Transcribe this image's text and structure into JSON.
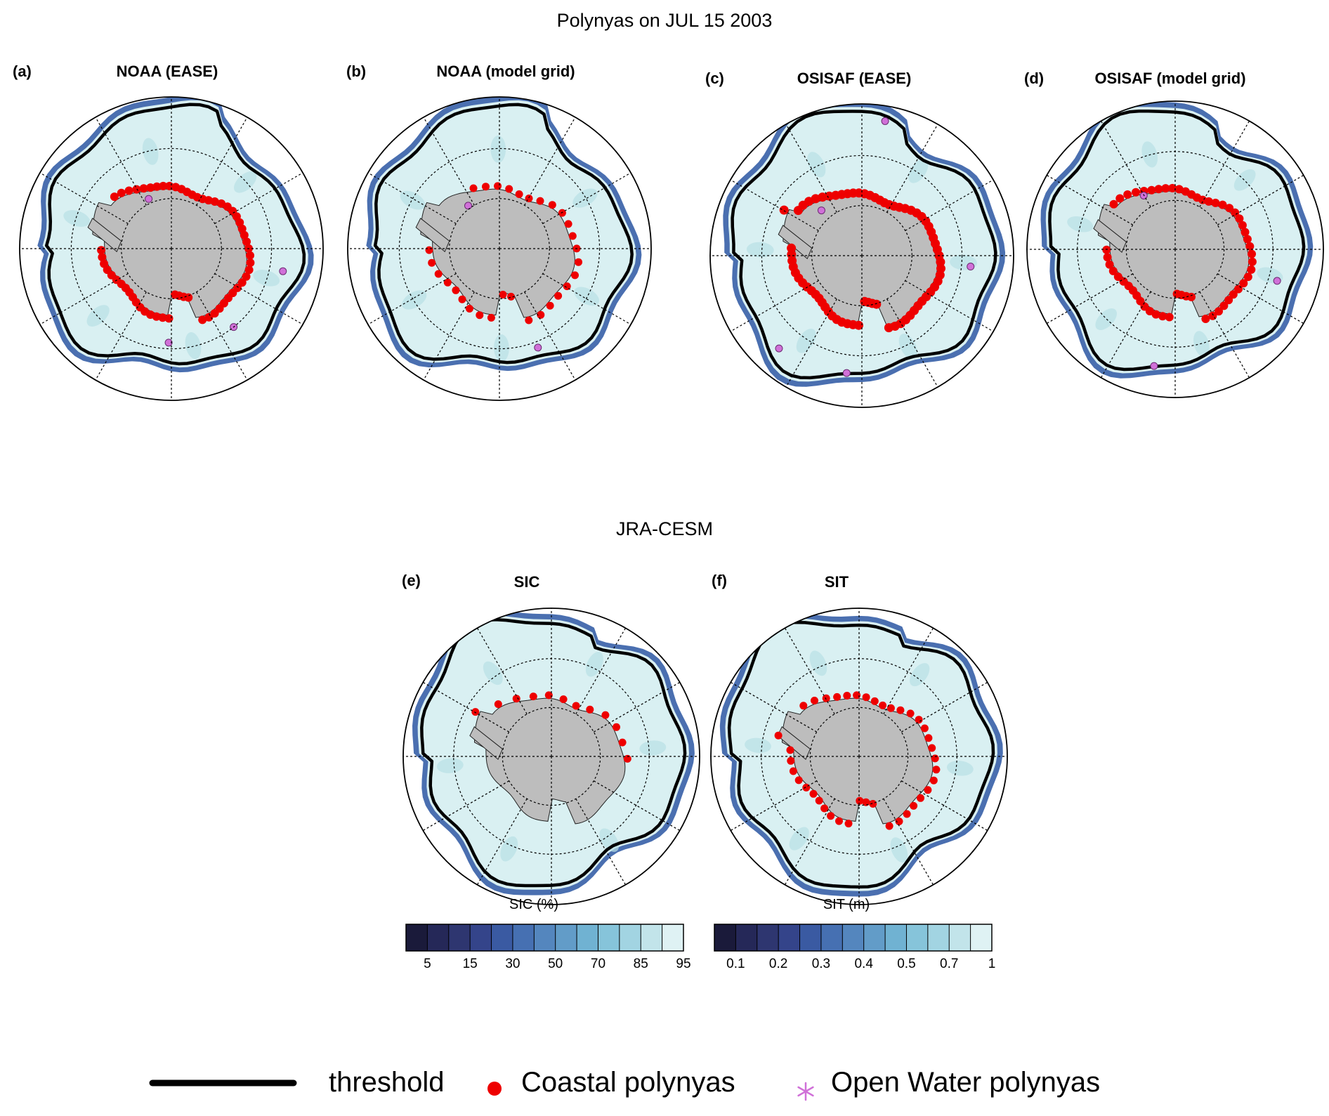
{
  "figure": {
    "title": "Polynyas on JUL 15 2003",
    "subtitle": "JRA-CESM"
  },
  "panels": [
    {
      "tag": "(a)",
      "title": "NOAA (EASE)"
    },
    {
      "tag": "(b)",
      "title": "NOAA (model grid)"
    },
    {
      "tag": "(c)",
      "title": "OSISAF (EASE)"
    },
    {
      "tag": "(d)",
      "title": "OSISAF (model grid)"
    },
    {
      "tag": "(e)",
      "title": "SIC"
    },
    {
      "tag": "(f)",
      "title": "SIT"
    }
  ],
  "colorbars": [
    {
      "label": "SIC (%)",
      "ticks": [
        "5",
        "15",
        "30",
        "50",
        "70",
        "85",
        "95"
      ],
      "colors": [
        "#1a1a3a",
        "#252858",
        "#2e3670",
        "#34448a",
        "#3a5aa2",
        "#4670b2",
        "#5486be",
        "#629cc8",
        "#70b2d2",
        "#86c4da",
        "#a2d4e2",
        "#c2e4ea",
        "#dff2f4"
      ]
    },
    {
      "label": "SIT (m)",
      "ticks": [
        "0.1",
        "0.2",
        "0.3",
        "0.4",
        "0.5",
        "0.7",
        "1"
      ],
      "colors": [
        "#1a1a3a",
        "#252858",
        "#2e3670",
        "#34448a",
        "#3a5aa2",
        "#4670b2",
        "#5486be",
        "#629cc8",
        "#70b2d2",
        "#86c4da",
        "#a2d4e2",
        "#c2e4ea",
        "#dff2f4"
      ]
    }
  ],
  "legend": {
    "threshold": "threshold",
    "coastal": "Coastal polynyas",
    "openwater": "Open Water polynyas"
  },
  "colors": {
    "land": "#bdbdbd",
    "ice": "#d9f0f2",
    "iceEdge": "#4a6fb0",
    "threshold": "#000000",
    "coastal": "#ee0000",
    "openwater": "#d070d8"
  }
}
